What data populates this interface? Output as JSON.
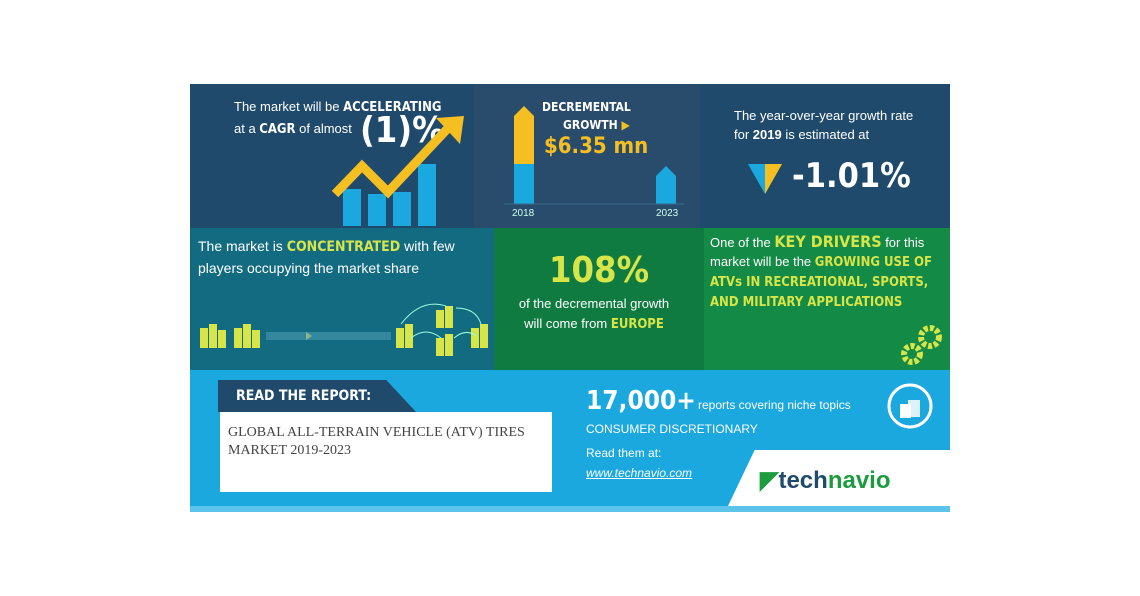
{
  "cagr": {
    "prefix": "The market will be ",
    "emph": "ACCELERATING",
    "line2_a": "at a ",
    "line2_emph": "CAGR",
    "line2_b": " of almost",
    "value": "(1)%"
  },
  "growth": {
    "title1": "DECREMENTAL",
    "title2": "GROWTH",
    "value": "$6.35 mn",
    "year_start": "2018",
    "year_end": "2023"
  },
  "yoy": {
    "line1": "The year-over-year growth rate",
    "line2_a": "for ",
    "line2_year": "2019",
    "line2_b": " is estimated at",
    "value": "-1.01%"
  },
  "concentration": {
    "a": "The market is ",
    "emph": "CONCENTRATED",
    "b": " with few",
    "line2": "players occupying the market share"
  },
  "region": {
    "value": "108%",
    "line1": "of the decremental growth",
    "line2_a": "will come from ",
    "line2_emph": "EUROPE"
  },
  "drivers": {
    "a": "One of the ",
    "emph": "KEY DRIVERS",
    "b": " for this",
    "c": "market will be the ",
    "emph2": "GROWING USE OF ATVs IN RECREATIONAL, SPORTS, AND MILITARY APPLICATIONS"
  },
  "report": {
    "tag": "READ THE REPORT:",
    "title": "GLOBAL ALL-TERRAIN VEHICLE (ATV) TIRES MARKET 2019-2023"
  },
  "promo": {
    "count": "17,000+",
    "count_desc": "reports covering niche topics",
    "category": "CONSUMER DISCRETIONARY",
    "read": "Read them at:",
    "url": "www.technavio.com"
  },
  "brand": {
    "logo_a": "tech",
    "logo_b": "navio"
  },
  "colors": {
    "navy": "#1f4a6b",
    "teal": "#136b82",
    "green": "#0f7b40",
    "green2": "#138a45",
    "sky": "#1aa8df",
    "yellow": "#f5bf22",
    "lime": "#d8e548"
  }
}
